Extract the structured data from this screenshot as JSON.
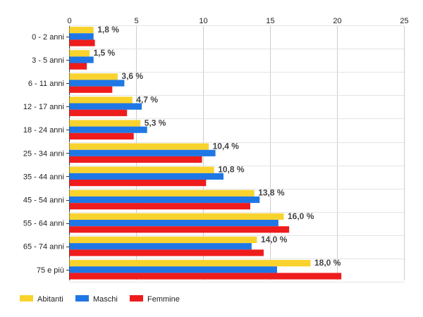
{
  "chart_data": {
    "type": "bar",
    "orientation": "horizontal",
    "categories": [
      "0 - 2 anni",
      "3 - 5 anni",
      "6 - 11 anni",
      "12 - 17 anni",
      "18 - 24 anni",
      "25 - 34 anni",
      "35 - 44 anni",
      "45 - 54 anni",
      "55 - 64 anni",
      "65 - 74 anni",
      "75 e più"
    ],
    "series": [
      {
        "name": "Abitanti",
        "color": "#f9d32d",
        "values": [
          1.8,
          1.5,
          3.6,
          4.7,
          5.3,
          10.4,
          10.8,
          13.8,
          16.0,
          14.0,
          18.0
        ],
        "labels": [
          "1,8 %",
          "1,5 %",
          "3,6 %",
          "4,7 %",
          "5,3 %",
          "10,4 %",
          "10,8 %",
          "13,8 %",
          "16,0 %",
          "14,0 %",
          "18,0 %"
        ]
      },
      {
        "name": "Maschi",
        "color": "#1f77e5",
        "values": [
          1.8,
          1.8,
          4.1,
          5.4,
          5.8,
          10.9,
          11.5,
          14.2,
          15.6,
          13.6,
          15.5
        ]
      },
      {
        "name": "Femmine",
        "color": "#ee1c1c",
        "values": [
          1.9,
          1.3,
          3.2,
          4.3,
          4.8,
          9.9,
          10.2,
          13.5,
          16.4,
          14.5,
          20.3
        ]
      }
    ],
    "xlim": [
      0,
      25
    ],
    "xticks": [
      "0",
      "5",
      "10",
      "15",
      "20",
      "25"
    ],
    "xtick_values": [
      0,
      5,
      10,
      15,
      20,
      25
    ],
    "grid": true,
    "legend_position": "bottom-left"
  }
}
